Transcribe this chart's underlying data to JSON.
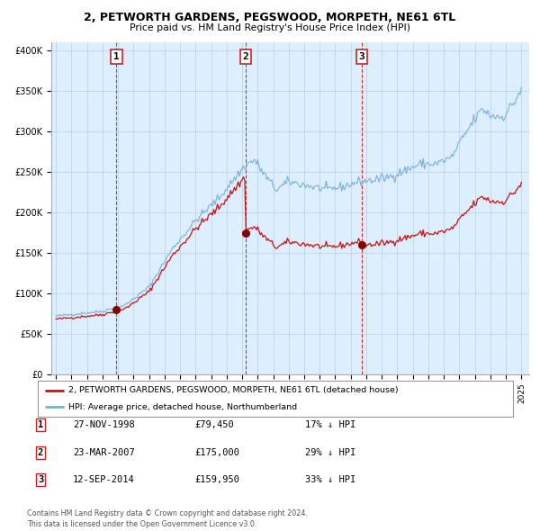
{
  "title_line1": "2, PETWORTH GARDENS, PEGSWOOD, MORPETH, NE61 6TL",
  "title_line2": "Price paid vs. HM Land Registry's House Price Index (HPI)",
  "plot_bg_color": "#ddeeff",
  "hpi_color": "#7ab0d8",
  "property_color": "#cc1111",
  "marker_color": "#880000",
  "sale1_date": 1998.9,
  "sale1_price": 79450,
  "sale2_date": 2007.22,
  "sale2_price": 175000,
  "sale3_date": 2014.71,
  "sale3_price": 159950,
  "legend_label1": "2, PETWORTH GARDENS, PEGSWOOD, MORPETH, NE61 6TL (detached house)",
  "legend_label2": "HPI: Average price, detached house, Northumberland",
  "table_rows": [
    [
      "1",
      "27-NOV-1998",
      "£79,450",
      "17% ↓ HPI"
    ],
    [
      "2",
      "23-MAR-2007",
      "£175,000",
      "29% ↓ HPI"
    ],
    [
      "3",
      "12-SEP-2014",
      "£159,950",
      "33% ↓ HPI"
    ]
  ],
  "footer": "Contains HM Land Registry data © Crown copyright and database right 2024.\nThis data is licensed under the Open Government Licence v3.0.",
  "ylabel_ticks": [
    "£0",
    "£50K",
    "£100K",
    "£150K",
    "£200K",
    "£250K",
    "£300K",
    "£350K",
    "£400K"
  ],
  "ytick_vals": [
    0,
    50000,
    100000,
    150000,
    200000,
    250000,
    300000,
    350000,
    400000
  ],
  "grid_color": "#b8cfe8",
  "vline_color": "#cc3333",
  "box_edge_color": "#cc2222"
}
